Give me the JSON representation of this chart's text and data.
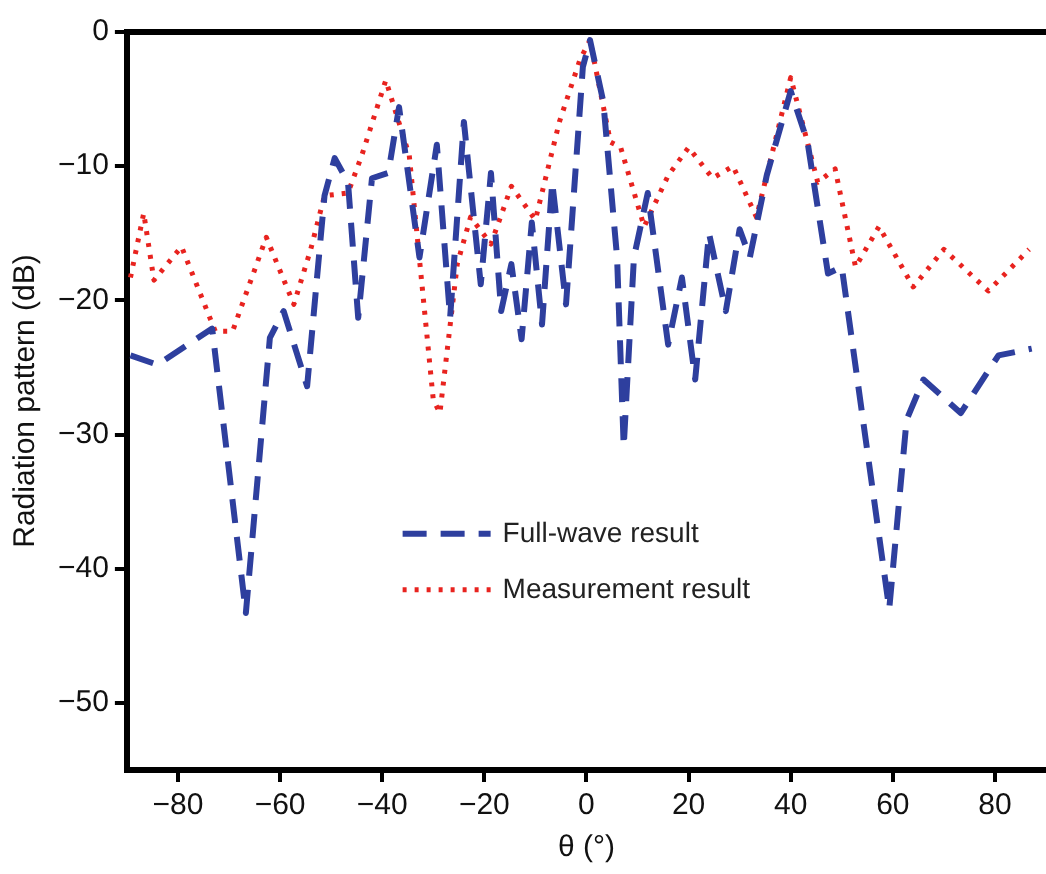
{
  "chart_data": {
    "type": "line",
    "xlabel": "θ (°)",
    "ylabel": "Radiation pattern (dB)",
    "xlim": [
      -90,
      90
    ],
    "ylim": [
      -55,
      0
    ],
    "xticks": [
      -80,
      -60,
      -40,
      -20,
      0,
      20,
      40,
      60,
      80
    ],
    "yticks": [
      0,
      -10,
      -20,
      -30,
      -40,
      -50
    ],
    "grid": false,
    "legend": "bottom",
    "marker": "none",
    "series": [
      {
        "name": "Full-wave result",
        "color": "#2e3f9e",
        "line_style": "dashed",
        "x": [
          -89.3,
          -84,
          -73.3,
          -66.7,
          -62,
          -59.3,
          -54.7,
          -51.3,
          -49.3,
          -46.7,
          -44.7,
          -42,
          -38.8,
          -36.7,
          -32.7,
          -29.3,
          -26.7,
          -24,
          -20.7,
          -18.7,
          -16.7,
          -14.7,
          -12.7,
          -10.7,
          -8.7,
          -6.7,
          -4,
          -0.7,
          0.7,
          3.3,
          6,
          7.3,
          9.3,
          12,
          16,
          18.7,
          21.3,
          24,
          27.3,
          30,
          32,
          35.3,
          40,
          43.3,
          47.3,
          50,
          54.7,
          59.3,
          62.7,
          66,
          73.3,
          80.7,
          87.2
        ],
        "values": [
          -24.1,
          -24.8,
          -22.1,
          -43.3,
          -22.8,
          -20.8,
          -26.4,
          -12.2,
          -9.4,
          -11.2,
          -21.3,
          -10.9,
          -10.5,
          -5.6,
          -16.8,
          -8.4,
          -21.3,
          -6.7,
          -18.8,
          -10.5,
          -20.8,
          -17.3,
          -22.9,
          -14.2,
          -21.8,
          -11.2,
          -20.3,
          -2.6,
          -0.6,
          -5.2,
          -16.8,
          -30.9,
          -16.8,
          -12,
          -23.3,
          -18.3,
          -25.9,
          -15,
          -20.8,
          -14.7,
          -16.8,
          -10.7,
          -4.4,
          -8.2,
          -18,
          -17.5,
          -30.4,
          -43,
          -28.9,
          -25.9,
          -28.4,
          -24.1,
          -23.6
        ]
      },
      {
        "name": "Measurement result",
        "color": "#e8231f",
        "line_style": "dotted",
        "x": [
          -89.3,
          -86.7,
          -84.7,
          -79.3,
          -72.7,
          -69.3,
          -62.7,
          -57.3,
          -54,
          -51.3,
          -46.7,
          -44,
          -39.3,
          -34.7,
          -30,
          -28.7,
          -25.3,
          -22.7,
          -18.7,
          -14.7,
          -10,
          -5.3,
          -1.3,
          0.7,
          4.7,
          6.7,
          11.3,
          16,
          20,
          24.7,
          28.7,
          33.3,
          40,
          45.3,
          48.7,
          52.7,
          57.3,
          64,
          70,
          78.7,
          86.7
        ],
        "values": [
          -18.3,
          -13.5,
          -18.5,
          -16,
          -22.3,
          -22.3,
          -15.3,
          -20.3,
          -16.2,
          -12.2,
          -12,
          -9.2,
          -3.6,
          -9.2,
          -27.4,
          -28.4,
          -17.3,
          -13.8,
          -15.8,
          -11.5,
          -14,
          -6.7,
          -2.1,
          -0.6,
          -8.2,
          -8.6,
          -14.5,
          -10.7,
          -8.6,
          -10.9,
          -10,
          -13.8,
          -3.4,
          -11.2,
          -10.2,
          -17.5,
          -14.5,
          -19,
          -16.2,
          -19.3,
          -16.2
        ]
      }
    ]
  }
}
